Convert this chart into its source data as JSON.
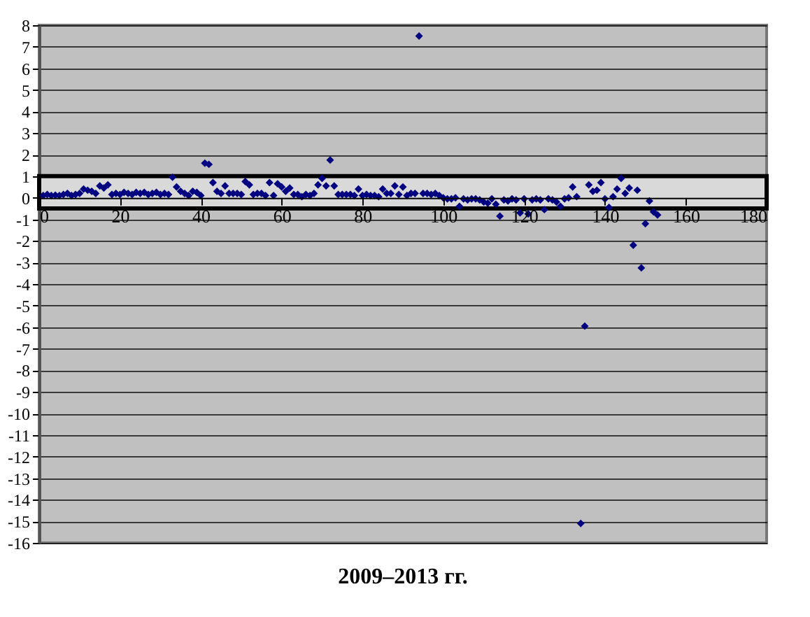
{
  "chart_data": {
    "type": "scatter",
    "title": "2009–2013 гг.",
    "x": [
      1,
      2,
      3,
      4,
      5,
      6,
      7,
      8,
      9,
      10,
      11,
      12,
      13,
      14,
      15,
      16,
      17,
      18,
      19,
      20,
      21,
      22,
      23,
      24,
      25,
      26,
      27,
      28,
      29,
      30,
      31,
      32,
      33,
      34,
      35,
      36,
      37,
      38,
      39,
      40,
      41,
      42,
      43,
      44,
      45,
      46,
      47,
      48,
      49,
      50,
      51,
      52,
      53,
      54,
      55,
      56,
      57,
      58,
      59,
      60,
      61,
      62,
      63,
      64,
      65,
      66,
      67,
      68,
      69,
      70,
      71,
      72,
      73,
      74,
      75,
      76,
      77,
      78,
      79,
      80,
      81,
      82,
      83,
      84,
      85,
      86,
      87,
      88,
      89,
      90,
      91,
      92,
      93,
      94,
      95,
      96,
      97,
      98,
      99,
      100,
      101,
      102,
      103,
      104,
      105,
      106,
      107,
      108,
      109,
      110,
      111,
      112,
      113,
      114,
      115,
      116,
      117,
      118,
      119,
      120,
      121,
      122,
      123,
      124,
      125,
      126,
      127,
      128,
      129,
      130,
      131,
      132,
      133,
      134,
      135,
      136,
      137,
      138,
      139,
      140,
      141,
      142,
      143,
      144,
      145,
      146,
      147,
      148,
      149,
      150,
      151,
      152,
      153
    ],
    "series": [
      {
        "color": "#000080",
        "values": [
          0.1,
          0.15,
          0.1,
          0.12,
          0.1,
          0.15,
          0.2,
          0.1,
          0.15,
          0.2,
          0.4,
          0.35,
          0.3,
          0.2,
          0.55,
          0.45,
          0.6,
          0.15,
          0.2,
          0.15,
          0.25,
          0.2,
          0.15,
          0.25,
          0.2,
          0.25,
          0.15,
          0.2,
          0.25,
          0.15,
          0.2,
          0.15,
          0.95,
          0.5,
          0.3,
          0.2,
          0.1,
          0.3,
          0.25,
          0.1,
          1.6,
          1.55,
          0.7,
          0.3,
          0.2,
          0.55,
          0.2,
          0.2,
          0.2,
          0.15,
          0.75,
          0.6,
          0.15,
          0.2,
          0.2,
          0.1,
          0.7,
          0.1,
          0.65,
          0.5,
          0.3,
          0.45,
          0.15,
          0.15,
          0.05,
          0.15,
          0.1,
          0.2,
          0.6,
          0.9,
          0.55,
          1.75,
          0.55,
          0.15,
          0.15,
          0.15,
          0.15,
          0.1,
          0.4,
          0.1,
          0.15,
          0.1,
          0.1,
          0.05,
          0.4,
          0.2,
          0.2,
          0.55,
          0.15,
          0.5,
          0.1,
          0.2,
          0.2,
          7.5,
          0.2,
          0.2,
          0.15,
          0.2,
          0.1,
          0,
          -0.05,
          -0.05,
          0,
          -0.4,
          -0.05,
          -0.1,
          -0.05,
          -0.05,
          -0.1,
          -0.2,
          -0.25,
          -0.05,
          -0.3,
          -0.85,
          -0.1,
          -0.15,
          -0.05,
          -0.1,
          -0.7,
          -0.05,
          -0.75,
          -0.1,
          -0.05,
          -0.1,
          -0.55,
          -0.05,
          -0.1,
          -0.2,
          -0.4,
          -0.05,
          0,
          0.5,
          0.05,
          -15.1,
          -5.95,
          0.6,
          0.3,
          0.35,
          0.7,
          -0.05,
          -0.45,
          0.05,
          0.4,
          0.9,
          0.2,
          0.45,
          -2.2,
          0.35,
          -3.25,
          -1.2,
          -0.15,
          -0.65,
          -0.8
        ]
      }
    ],
    "xlim": [
      0,
      180
    ],
    "xticks": [
      0,
      20,
      40,
      60,
      80,
      100,
      120,
      140,
      160,
      180
    ],
    "ylim": [
      -16,
      8
    ],
    "yticks": [
      -16,
      -15,
      -14,
      -13,
      -12,
      -11,
      -10,
      -9,
      -8,
      -7,
      -6,
      -5,
      -4,
      -3,
      -2,
      -1,
      0,
      1,
      2,
      3,
      4,
      5,
      6,
      7,
      8
    ],
    "bands": [
      {
        "axis": "y",
        "from": -0.5,
        "to": 1,
        "color": "#d9d9d9"
      }
    ],
    "grid": "y",
    "marker": "diamond"
  }
}
